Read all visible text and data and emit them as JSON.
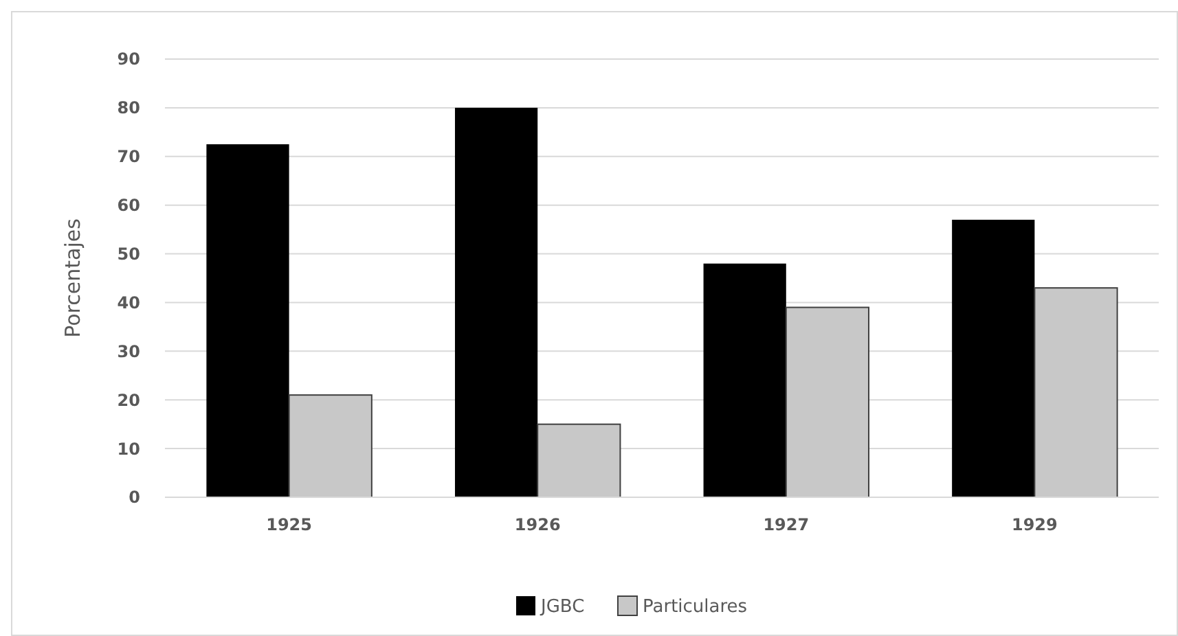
{
  "chart_data": {
    "type": "bar",
    "ylabel": "Porcentajes",
    "categories": [
      "1925",
      "1926",
      "1927",
      "1929"
    ],
    "series": [
      {
        "name": "JGBC",
        "color": "#000000",
        "values": [
          72.5,
          80,
          48,
          57
        ]
      },
      {
        "name": "Particulares",
        "color": "#c8c8c8",
        "values": [
          21,
          15,
          39,
          43
        ]
      }
    ],
    "ylim": [
      0,
      90
    ],
    "yticks": [
      0,
      10,
      20,
      30,
      40,
      50,
      60,
      70,
      80,
      90
    ],
    "grid": "y",
    "legend": "bottom"
  }
}
